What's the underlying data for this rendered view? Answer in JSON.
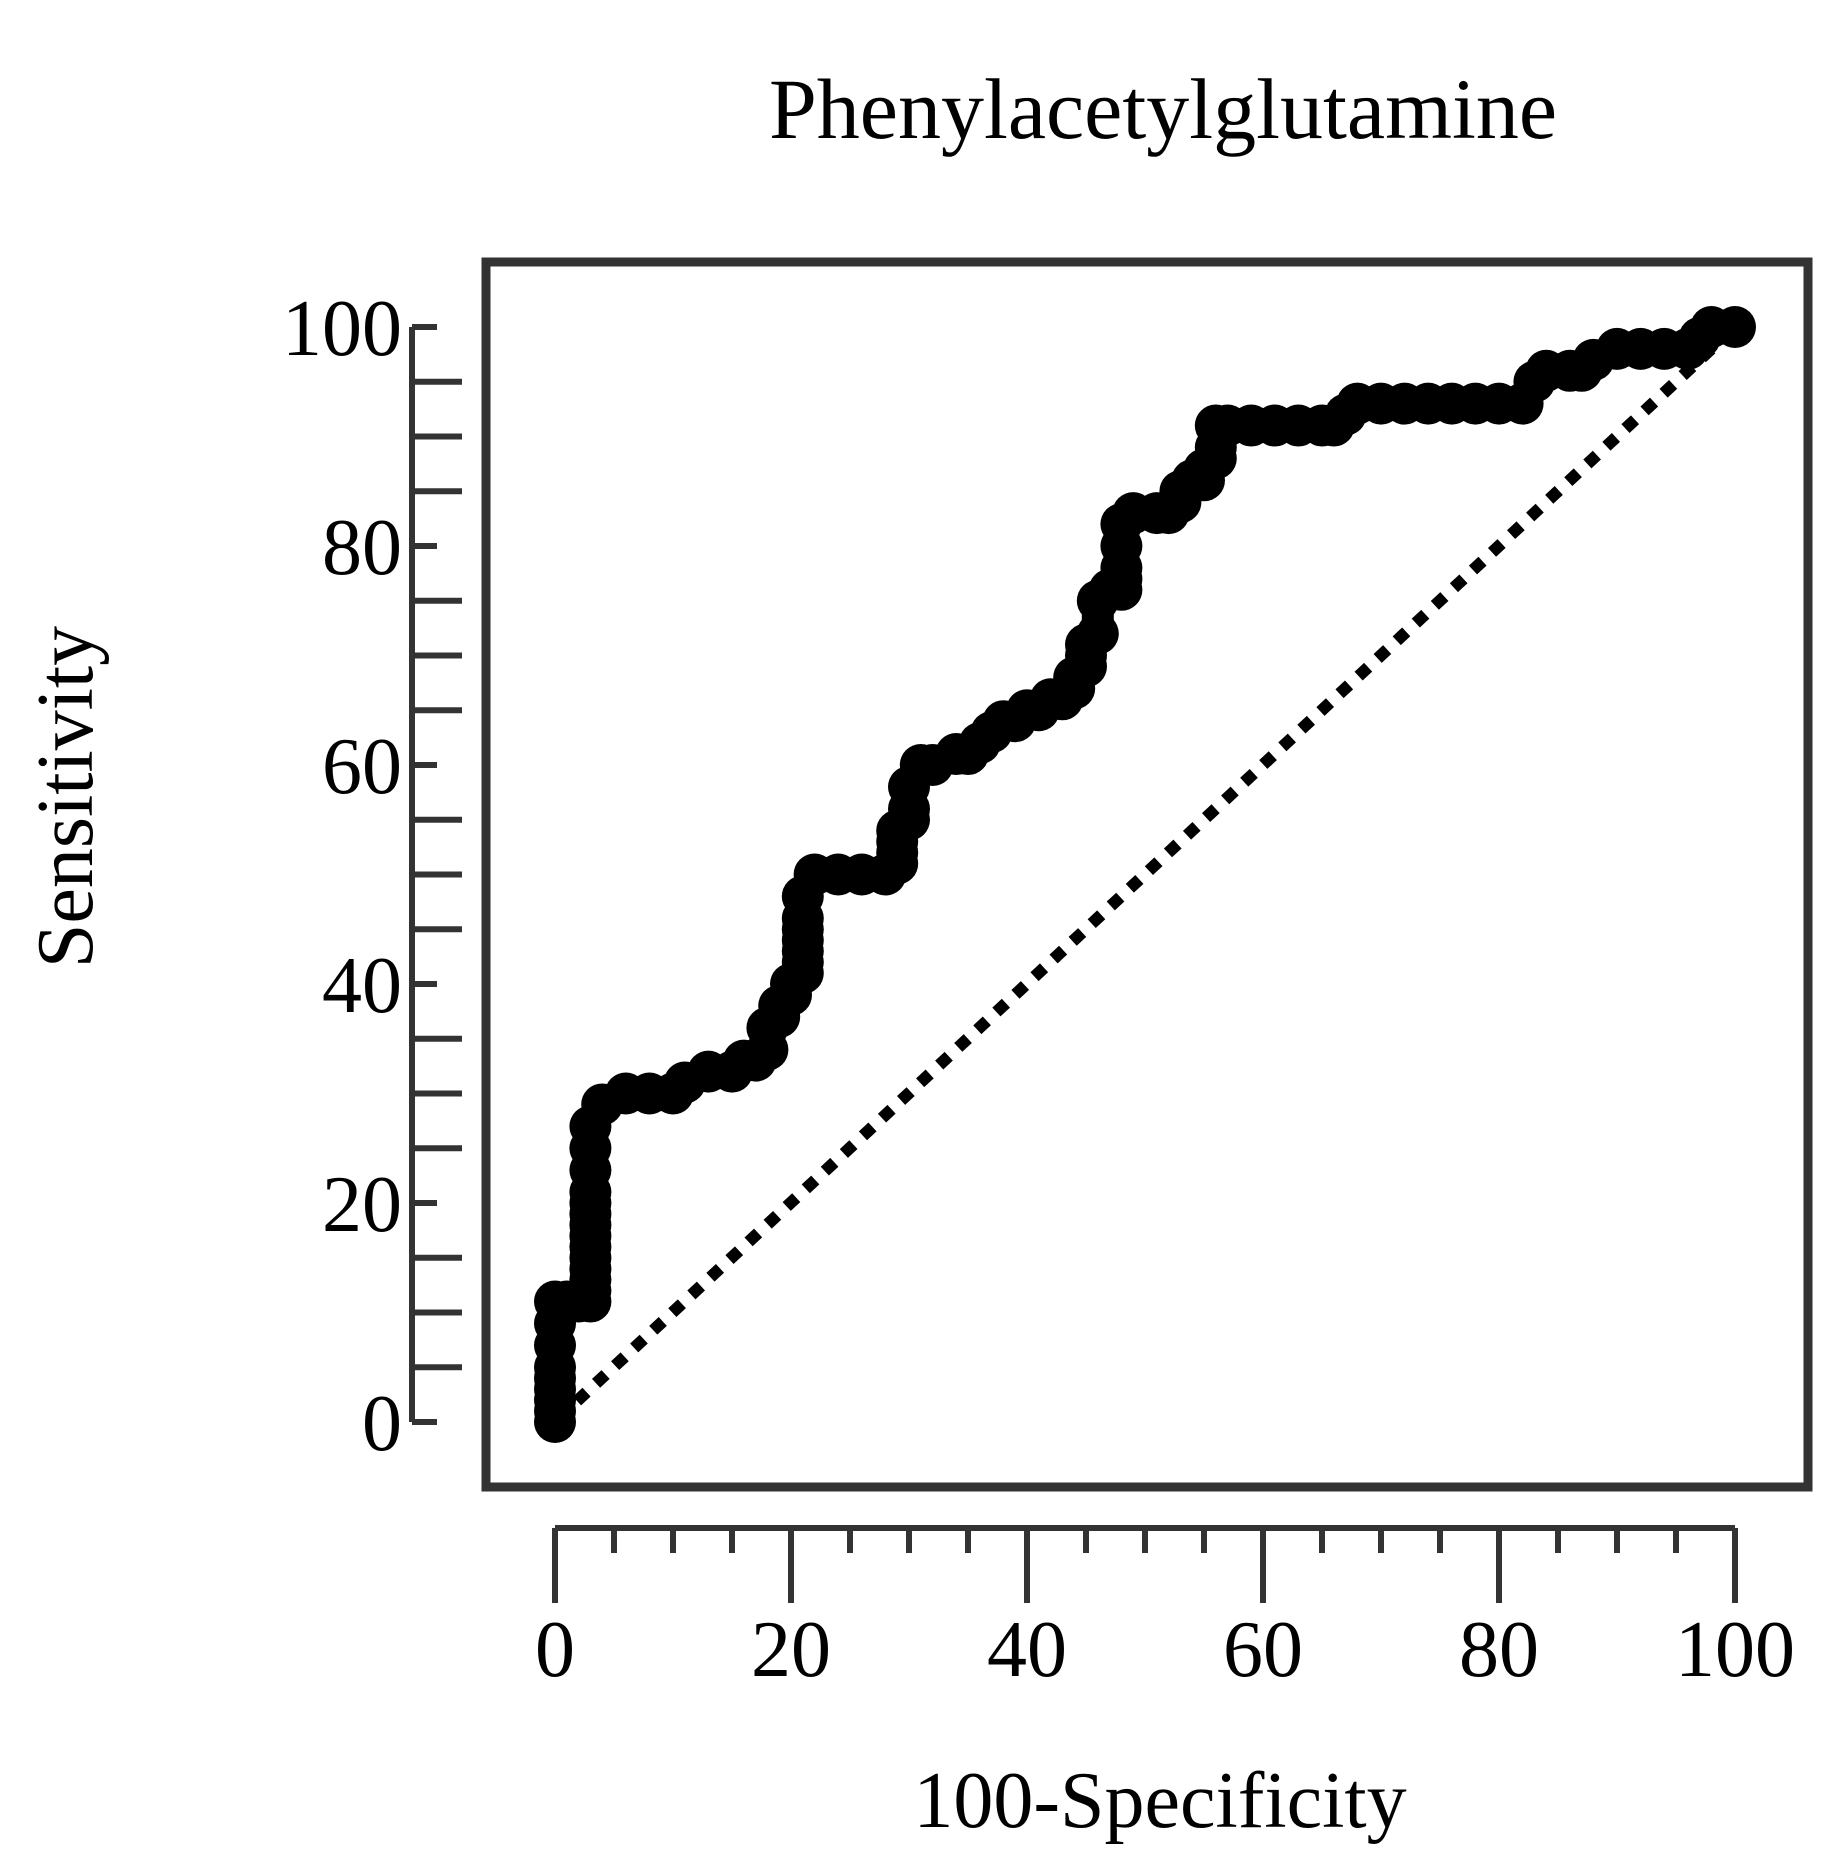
{
  "chart_data": {
    "type": "line",
    "title": "Phenylacetylglutamine",
    "xlabel": "100-Specificity",
    "ylabel": "Sensitivity",
    "xlim": [
      0,
      100
    ],
    "ylim": [
      0,
      100
    ],
    "x_ticks": [
      0,
      20,
      40,
      60,
      80,
      100
    ],
    "y_ticks": [
      0,
      20,
      40,
      60,
      80,
      100
    ],
    "x_tick_labels": [
      "0",
      "20",
      "40",
      "60",
      "80",
      "100"
    ],
    "y_tick_labels": [
      "0",
      "20",
      "40",
      "60",
      "80",
      "100"
    ],
    "grid": false,
    "series": [
      {
        "name": "ROC curve",
        "style": "solid-dots",
        "color": "#000000",
        "x": [
          0,
          0,
          0,
          0,
          0,
          0,
          0,
          0,
          0,
          1,
          2,
          3,
          3,
          3,
          3,
          3,
          3,
          3,
          3,
          3,
          3,
          3,
          3,
          3,
          3,
          4,
          6,
          8,
          10,
          11,
          13,
          15,
          16,
          17,
          18,
          18,
          19,
          19,
          20,
          20,
          21,
          21,
          21,
          21,
          21,
          21,
          21,
          22,
          24,
          26,
          28,
          29,
          29,
          29,
          29,
          30,
          30,
          30,
          31,
          32,
          34,
          35,
          36,
          37,
          38,
          39,
          40,
          41,
          42,
          43,
          44,
          44,
          45,
          45,
          45,
          46,
          46,
          47,
          48,
          48,
          48,
          48,
          48,
          49,
          51,
          52,
          53,
          53,
          54,
          55,
          55,
          56,
          56,
          56,
          57,
          59,
          61,
          63,
          65,
          66,
          67,
          68,
          70,
          72,
          74,
          76,
          78,
          80,
          82,
          83,
          84,
          86,
          87,
          88,
          90,
          92,
          94,
          96,
          97,
          98,
          100
        ],
        "y": [
          0,
          1,
          2,
          3,
          4,
          5,
          7,
          9,
          11,
          11,
          11,
          11,
          12,
          13,
          14,
          15,
          16,
          17,
          18,
          19,
          20,
          21,
          23,
          25,
          27,
          29,
          30,
          30,
          30,
          31,
          32,
          32,
          33,
          33,
          34,
          36,
          37,
          38,
          39,
          40,
          41,
          42,
          43,
          44,
          45,
          46,
          48,
          50,
          50,
          50,
          50,
          51,
          52,
          53,
          54,
          55,
          56,
          58,
          60,
          60,
          61,
          61,
          62,
          63,
          64,
          64,
          65,
          65,
          66,
          66,
          67,
          68,
          69,
          70,
          71,
          72,
          75,
          76,
          76,
          77,
          78,
          80,
          82,
          83,
          83,
          83,
          84,
          85,
          86,
          86,
          87,
          88,
          89,
          91,
          91,
          91,
          91,
          91,
          91,
          91,
          92,
          93,
          93,
          93,
          93,
          93,
          93,
          93,
          93,
          95,
          96,
          96,
          96,
          97,
          98,
          98,
          98,
          98,
          99,
          100,
          100
        ]
      },
      {
        "name": "Reference line",
        "style": "dotted",
        "color": "#000000",
        "x": [
          0,
          100
        ],
        "y": [
          0,
          100
        ]
      }
    ]
  }
}
